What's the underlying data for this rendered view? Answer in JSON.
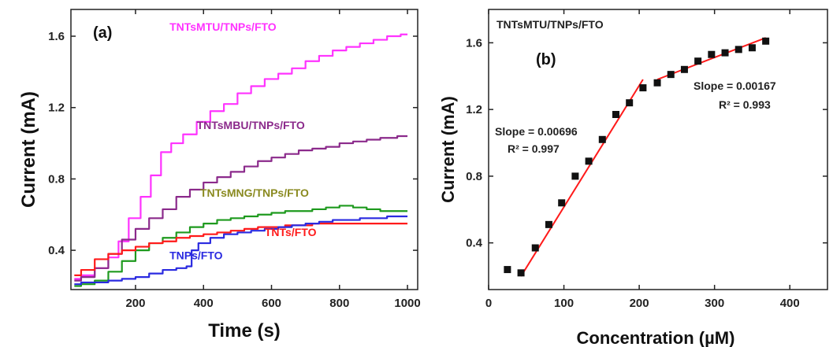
{
  "colors": {
    "magenta": "#ff33ff",
    "purple": "#8b2a8b",
    "green": "#1e9a1e",
    "red": "#ff1a1a",
    "blue": "#2a2ae0",
    "olive": "#8a8a20",
    "black": "#111111"
  },
  "chart_data": [
    {
      "type": "line",
      "panel": "(a)",
      "xlabel": "Time (s)",
      "ylabel": "Current (mA)",
      "xlim": [
        10,
        1030
      ],
      "ylim": [
        0.18,
        1.75
      ],
      "xticks": [
        200,
        400,
        600,
        800,
        1000
      ],
      "yticks": [
        0.4,
        0.8,
        1.2,
        1.6
      ],
      "xtick_labels": [
        "200",
        "400",
        "600",
        "800",
        "1000"
      ],
      "ytick_labels": [
        "0.4",
        "0.8",
        "1.2",
        "1.6"
      ],
      "series": [
        {
          "name": "TNTsMTU/TNPs/FTO",
          "color": "#ff33ff",
          "label_x": 370,
          "label_y": 1.64,
          "x": [
            20,
            60,
            100,
            140,
            160,
            200,
            230,
            260,
            290,
            320,
            360,
            400,
            440,
            480,
            520,
            560,
            600,
            640,
            680,
            720,
            760,
            800,
            840,
            880,
            920,
            960,
            1000
          ],
          "y": [
            0.24,
            0.26,
            0.3,
            0.36,
            0.45,
            0.58,
            0.7,
            0.82,
            0.95,
            1.0,
            1.05,
            1.12,
            1.18,
            1.22,
            1.28,
            1.32,
            1.36,
            1.39,
            1.42,
            1.46,
            1.49,
            1.52,
            1.54,
            1.56,
            1.58,
            1.6,
            1.61
          ]
        },
        {
          "name": "TNTsMBU/TNPs/FTO",
          "color": "#8b2a8b",
          "label_x": 310,
          "label_y": 1.1,
          "x": [
            20,
            60,
            100,
            140,
            180,
            220,
            260,
            300,
            340,
            380,
            420,
            460,
            500,
            540,
            580,
            620,
            660,
            700,
            740,
            780,
            820,
            860,
            900,
            940,
            1000
          ],
          "y": [
            0.23,
            0.25,
            0.3,
            0.38,
            0.46,
            0.52,
            0.58,
            0.63,
            0.7,
            0.74,
            0.78,
            0.81,
            0.84,
            0.87,
            0.9,
            0.92,
            0.94,
            0.96,
            0.97,
            0.98,
            1.0,
            1.01,
            1.02,
            1.03,
            1.04
          ]
        },
        {
          "name": "TNTsMNG/TNPs/FTO",
          "color": "#1e9a1e",
          "x": [
            20,
            60,
            100,
            140,
            180,
            220,
            260,
            300,
            340,
            380,
            420,
            460,
            500,
            540,
            580,
            620,
            660,
            700,
            740,
            780,
            820,
            860,
            900,
            940,
            1000
          ],
          "y": [
            0.2,
            0.21,
            0.23,
            0.28,
            0.34,
            0.4,
            0.44,
            0.47,
            0.5,
            0.53,
            0.55,
            0.57,
            0.58,
            0.59,
            0.6,
            0.61,
            0.62,
            0.62,
            0.63,
            0.64,
            0.65,
            0.64,
            0.63,
            0.62,
            0.62
          ]
        },
        {
          "name": "TNTs/FTO",
          "color": "#ff1a1a",
          "x": [
            20,
            60,
            100,
            140,
            180,
            220,
            260,
            300,
            340,
            380,
            420,
            460,
            500,
            540,
            580,
            620,
            660,
            700,
            740,
            780,
            820,
            860,
            900,
            940,
            1000
          ],
          "y": [
            0.26,
            0.29,
            0.35,
            0.38,
            0.4,
            0.42,
            0.44,
            0.45,
            0.47,
            0.48,
            0.49,
            0.5,
            0.51,
            0.52,
            0.53,
            0.53,
            0.54,
            0.54,
            0.55,
            0.55,
            0.55,
            0.55,
            0.55,
            0.55,
            0.55
          ]
        },
        {
          "name": "TNPs/FTO",
          "color": "#2a2ae0",
          "x": [
            20,
            60,
            100,
            140,
            180,
            220,
            260,
            300,
            340,
            360,
            370,
            400,
            440,
            480,
            520,
            560,
            600,
            640,
            680,
            720,
            760,
            800,
            840,
            880,
            920,
            960,
            1000
          ],
          "y": [
            0.21,
            0.22,
            0.22,
            0.23,
            0.24,
            0.25,
            0.27,
            0.29,
            0.3,
            0.31,
            0.4,
            0.44,
            0.47,
            0.49,
            0.5,
            0.51,
            0.52,
            0.53,
            0.54,
            0.55,
            0.56,
            0.57,
            0.57,
            0.58,
            0.58,
            0.59,
            0.59
          ]
        }
      ],
      "series_labels": [
        {
          "text": "TNTsMTU/TNPs/FTO",
          "x": 300,
          "y": 1.63,
          "color": "#ff33ff"
        },
        {
          "text": "TNTsMBU/TNPs/FTO",
          "x": 380,
          "y": 1.08,
          "color": "#8b2a8b"
        },
        {
          "text": "TNTsMNG/TNPs/FTO",
          "x": 390,
          "y": 0.7,
          "color": "#8a8a20"
        },
        {
          "text": "TNTs/FTO",
          "x": 580,
          "y": 0.48,
          "color": "#ff1a1a"
        },
        {
          "text": "TNPs/FTO",
          "x": 300,
          "y": 0.35,
          "color": "#2a2ae0"
        }
      ]
    },
    {
      "type": "scatter",
      "panel": "(b)",
      "title": "TNTsMTU/TNPs/FTO",
      "xlabel": "Concentration (µM)",
      "ylabel": "Current (mA)",
      "xlim": [
        0,
        450
      ],
      "ylim": [
        0.12,
        1.8
      ],
      "xticks": [
        0,
        100,
        200,
        300,
        400
      ],
      "yticks": [
        0.4,
        0.8,
        1.2,
        1.6
      ],
      "xtick_labels": [
        "0",
        "100",
        "200",
        "300",
        "400"
      ],
      "ytick_labels": [
        "0.4",
        "0.8",
        "1.2",
        "1.6"
      ],
      "points": {
        "x": [
          25,
          43,
          62,
          80,
          97,
          115,
          133,
          151,
          169,
          187,
          205,
          224,
          242,
          260,
          278,
          296,
          314,
          332,
          350,
          368
        ],
        "y": [
          0.24,
          0.22,
          0.37,
          0.51,
          0.64,
          0.8,
          0.89,
          1.02,
          1.17,
          1.24,
          1.33,
          1.36,
          1.41,
          1.44,
          1.49,
          1.53,
          1.54,
          1.56,
          1.57,
          1.61
        ]
      },
      "fits": [
        {
          "x": [
            43,
            205
          ],
          "y": [
            0.2,
            1.38
          ],
          "color": "#ff1a1a"
        },
        {
          "x": [
            224,
            368
          ],
          "y": [
            1.38,
            1.63
          ],
          "color": "#ff1a1a"
        }
      ],
      "annotations": [
        {
          "slope": "Slope = 0.00696",
          "r2": "R² = 0.997"
        },
        {
          "slope": "Slope = 0.00167",
          "r2": "R² = 0.993"
        }
      ]
    }
  ]
}
